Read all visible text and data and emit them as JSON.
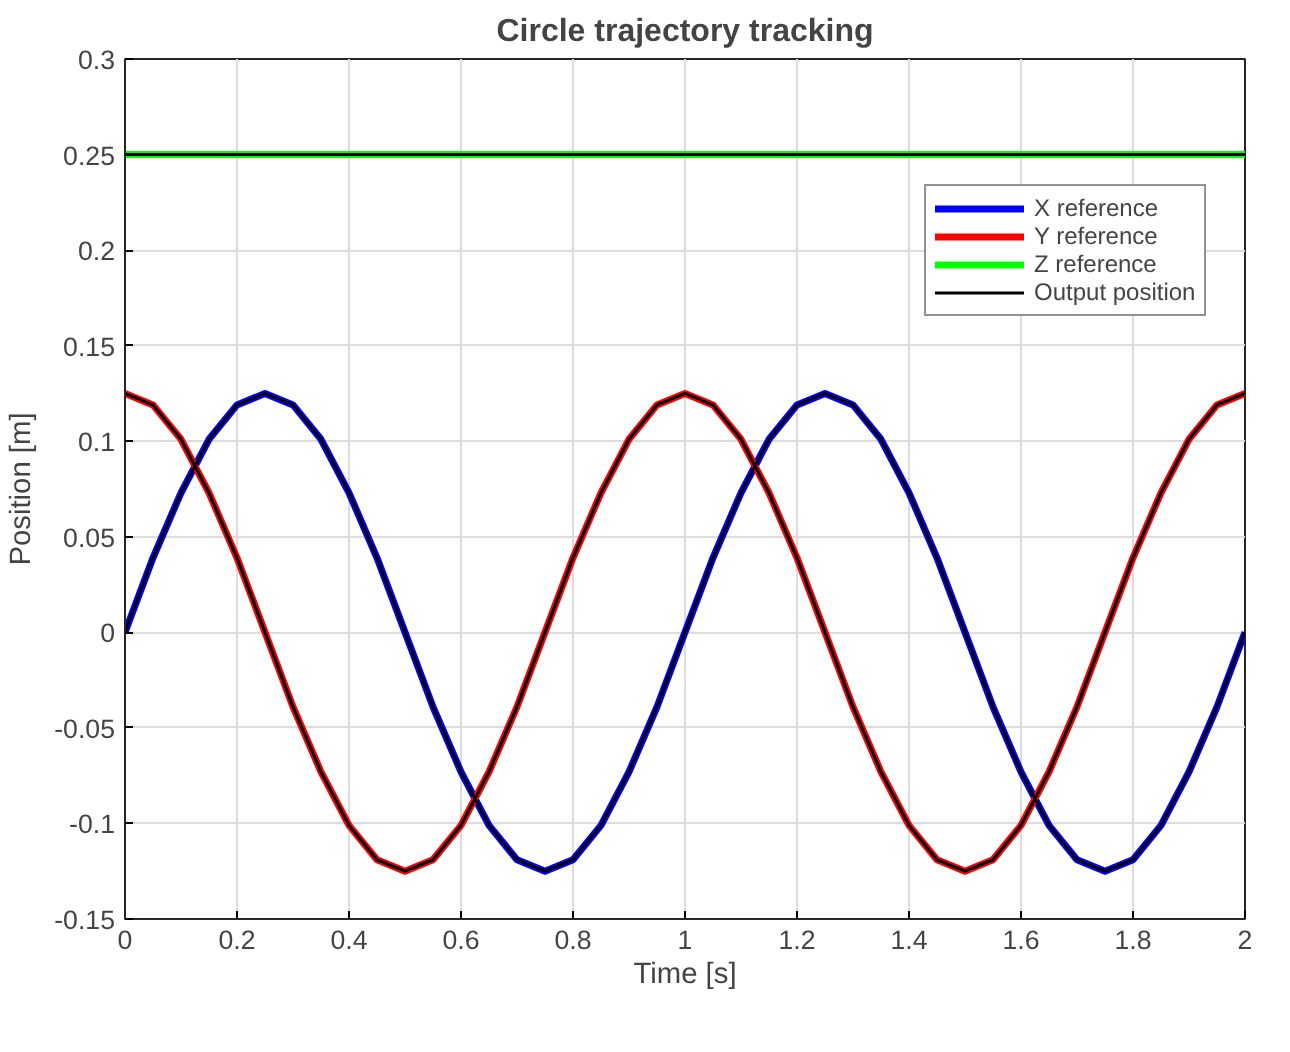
{
  "chart_data": {
    "type": "line",
    "title": "Circle trajectory tracking",
    "xlabel": "Time [s]",
    "ylabel": "Position [m]",
    "x": [
      0,
      0.05,
      0.1,
      0.15,
      0.2,
      0.25,
      0.3,
      0.35,
      0.4,
      0.45,
      0.5,
      0.55,
      0.6,
      0.65,
      0.7,
      0.75,
      0.8,
      0.85,
      0.9,
      0.95,
      1,
      1.05,
      1.1,
      1.15,
      1.2,
      1.25,
      1.3,
      1.35,
      1.4,
      1.45,
      1.5,
      1.55,
      1.6,
      1.65,
      1.7,
      1.75,
      1.8,
      1.85,
      1.9,
      1.95,
      2
    ],
    "series": [
      {
        "name": "X reference",
        "color": "#0000ff",
        "values": [
          0,
          0.039,
          0.073,
          0.101,
          0.119,
          0.125,
          0.119,
          0.101,
          0.073,
          0.039,
          0,
          -0.039,
          -0.073,
          -0.101,
          -0.119,
          -0.125,
          -0.119,
          -0.101,
          -0.073,
          -0.039,
          0,
          0.039,
          0.073,
          0.101,
          0.119,
          0.125,
          0.119,
          0.101,
          0.073,
          0.039,
          0,
          -0.039,
          -0.073,
          -0.101,
          -0.119,
          -0.125,
          -0.119,
          -0.101,
          -0.073,
          -0.039,
          0
        ]
      },
      {
        "name": "Y reference",
        "color": "#ff0000",
        "values": [
          0.125,
          0.119,
          0.101,
          0.073,
          0.039,
          0,
          -0.039,
          -0.073,
          -0.101,
          -0.119,
          -0.125,
          -0.119,
          -0.101,
          -0.073,
          -0.039,
          0,
          0.039,
          0.073,
          0.101,
          0.119,
          0.125,
          0.119,
          0.101,
          0.073,
          0.039,
          0,
          -0.039,
          -0.073,
          -0.101,
          -0.119,
          -0.125,
          -0.119,
          -0.101,
          -0.073,
          -0.039,
          0,
          0.039,
          0.073,
          0.101,
          0.119,
          0.125
        ]
      },
      {
        "name": "Z reference",
        "color": "#00ff00",
        "values": [
          0.25,
          0.25,
          0.25,
          0.25,
          0.25,
          0.25,
          0.25,
          0.25,
          0.25,
          0.25,
          0.25,
          0.25,
          0.25,
          0.25,
          0.25,
          0.25,
          0.25,
          0.25,
          0.25,
          0.25,
          0.25,
          0.25,
          0.25,
          0.25,
          0.25,
          0.25,
          0.25,
          0.25,
          0.25,
          0.25,
          0.25,
          0.25,
          0.25,
          0.25,
          0.25,
          0.25,
          0.25,
          0.25,
          0.25,
          0.25,
          0.25
        ]
      },
      {
        "name": "Output position",
        "color": "#000000",
        "values": [
          0,
          0.039,
          0.073,
          0.101,
          0.119,
          0.125,
          0.119,
          0.101,
          0.073,
          0.039,
          0,
          -0.039,
          -0.073,
          -0.101,
          -0.119,
          -0.125,
          -0.119,
          -0.101,
          -0.073,
          -0.039,
          0,
          0.039,
          0.073,
          0.101,
          0.119,
          0.125,
          0.119,
          0.101,
          0.073,
          0.039,
          0,
          -0.039,
          -0.073,
          -0.101,
          -0.119,
          -0.125,
          -0.119,
          -0.101,
          -0.073,
          -0.039,
          0
        ]
      },
      {
        "color": "#000000",
        "values": [
          0.125,
          0.119,
          0.101,
          0.073,
          0.039,
          0,
          -0.039,
          -0.073,
          -0.101,
          -0.119,
          -0.125,
          -0.119,
          -0.101,
          -0.073,
          -0.039,
          0,
          0.039,
          0.073,
          0.101,
          0.119,
          0.125,
          0.119,
          0.101,
          0.073,
          0.039,
          0,
          -0.039,
          -0.073,
          -0.101,
          -0.119,
          -0.125,
          -0.119,
          -0.101,
          -0.073,
          -0.039,
          0,
          0.039,
          0.073,
          0.101,
          0.119,
          0.125
        ]
      },
      {
        "color": "#000000",
        "values": [
          0.25,
          0.25,
          0.25,
          0.25,
          0.25,
          0.25,
          0.25,
          0.25,
          0.25,
          0.25,
          0.25,
          0.25,
          0.25,
          0.25,
          0.25,
          0.25,
          0.25,
          0.25,
          0.25,
          0.25,
          0.25,
          0.25,
          0.25,
          0.25,
          0.25,
          0.25,
          0.25,
          0.25,
          0.25,
          0.25,
          0.25,
          0.25,
          0.25,
          0.25,
          0.25,
          0.25,
          0.25,
          0.25,
          0.25,
          0.25,
          0.25
        ]
      }
    ],
    "xlim": [
      0,
      2
    ],
    "xticks": [
      0,
      0.2,
      0.4,
      0.6,
      0.8,
      1,
      1.2,
      1.4,
      1.6,
      1.8,
      2
    ],
    "ylim": [
      -0.15,
      0.3
    ],
    "yticks": [
      -0.15,
      -0.1,
      -0.05,
      0,
      0.05,
      0.1,
      0.15,
      0.2,
      0.25,
      0.3
    ],
    "grid": true,
    "legend": "top right"
  }
}
